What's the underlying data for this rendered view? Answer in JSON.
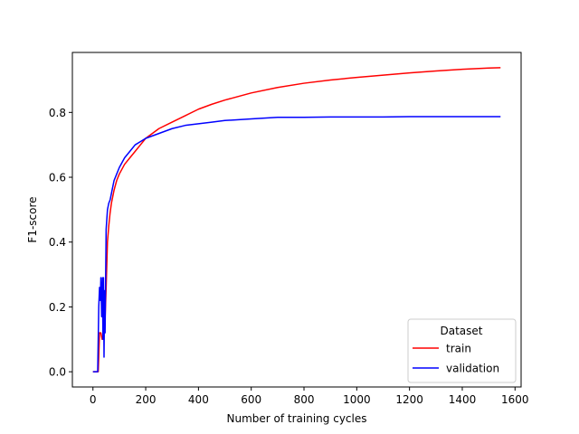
{
  "chart_data": {
    "type": "line",
    "title": "",
    "xlabel": "Number of training cycles",
    "ylabel": "F1-score",
    "xlim": [
      -78,
      1623
    ],
    "ylim": [
      -0.047,
      0.985
    ],
    "xticks": [
      0,
      200,
      400,
      600,
      800,
      1000,
      1200,
      1400,
      1600
    ],
    "xtick_labels": [
      "0",
      "200",
      "400",
      "600",
      "800",
      "1000",
      "1200",
      "1400",
      "1600"
    ],
    "yticks": [
      0.0,
      0.2,
      0.4,
      0.6,
      0.8
    ],
    "ytick_labels": [
      "0.0",
      "0.2",
      "0.4",
      "0.6",
      "0.8"
    ],
    "grid": false,
    "legend": {
      "title": "Dataset",
      "placement": "lower-right"
    },
    "series": [
      {
        "name": "train",
        "color": "#ff0000",
        "x": [
          0,
          10,
          20,
          25,
          30,
          35,
          40,
          45,
          50,
          55,
          60,
          65,
          70,
          80,
          90,
          100,
          120,
          140,
          160,
          180,
          200,
          250,
          300,
          350,
          400,
          450,
          500,
          600,
          700,
          800,
          900,
          1000,
          1100,
          1200,
          1300,
          1400,
          1500,
          1545
        ],
        "y": [
          0.0,
          0.0,
          0.0,
          0.12,
          0.12,
          0.1,
          0.11,
          0.14,
          0.26,
          0.4,
          0.45,
          0.49,
          0.52,
          0.56,
          0.59,
          0.61,
          0.64,
          0.66,
          0.68,
          0.7,
          0.72,
          0.75,
          0.77,
          0.79,
          0.81,
          0.825,
          0.838,
          0.86,
          0.877,
          0.89,
          0.9,
          0.908,
          0.915,
          0.922,
          0.928,
          0.933,
          0.937,
          0.938
        ]
      },
      {
        "name": "validation",
        "color": "#0000ff",
        "x": [
          0,
          10,
          18,
          22,
          25,
          28,
          30,
          33,
          36,
          38,
          40,
          42,
          44,
          46,
          48,
          50,
          55,
          60,
          65,
          70,
          80,
          90,
          100,
          120,
          140,
          160,
          180,
          200,
          250,
          300,
          350,
          400,
          450,
          500,
          600,
          700,
          800,
          900,
          1000,
          1100,
          1200,
          1300,
          1400,
          1500,
          1545
        ],
        "y": [
          0.0,
          0.0,
          0.0,
          0.2,
          0.26,
          0.22,
          0.29,
          0.17,
          0.29,
          0.1,
          0.29,
          0.045,
          0.25,
          0.12,
          0.28,
          0.44,
          0.5,
          0.52,
          0.53,
          0.55,
          0.59,
          0.61,
          0.63,
          0.66,
          0.68,
          0.7,
          0.71,
          0.72,
          0.735,
          0.75,
          0.76,
          0.765,
          0.77,
          0.775,
          0.78,
          0.785,
          0.785,
          0.786,
          0.786,
          0.786,
          0.787,
          0.787,
          0.787,
          0.787,
          0.787
        ]
      }
    ]
  }
}
